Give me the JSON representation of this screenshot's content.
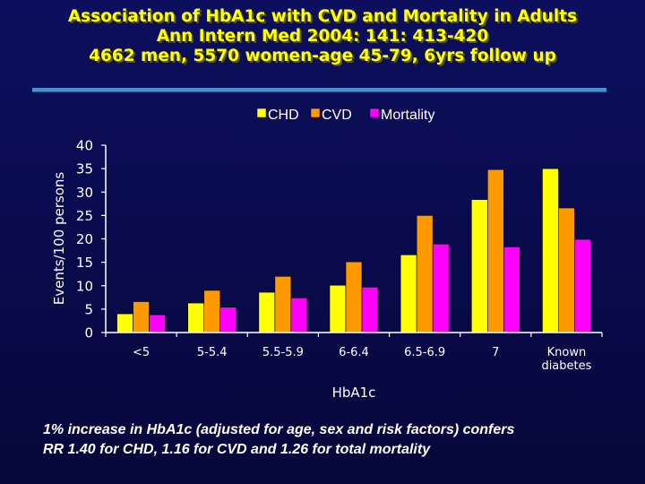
{
  "slide": {
    "title_lines": [
      "Association of HbA1c with CVD and Mortality in Adults",
      "Ann Intern Med 2004: 141: 413-420",
      "4662 men, 5570 women-age 45-79, 6yrs follow up"
    ],
    "note_lines": [
      "1% increase in HbA1c (adjusted for age, sex and risk factors) confers",
      "RR 1.40 for CHD, 1.16 for CVD and 1.26 for total mortality"
    ],
    "colors": {
      "title": "#ffff00",
      "divider": "#4a8fd6",
      "background": "#0a0b4f"
    }
  },
  "chart_data": {
    "type": "bar",
    "xlabel": "HbA1c",
    "ylabel": "Events/100 persons",
    "ylim": [
      0,
      40
    ],
    "yticks": [
      0,
      5,
      10,
      15,
      20,
      25,
      30,
      35,
      40
    ],
    "grid": false,
    "legend_position": "top",
    "categories": [
      [
        "<5"
      ],
      [
        "5-5.4"
      ],
      [
        "5.5-5.9"
      ],
      [
        "6-6.4"
      ],
      [
        "6.5-6.9"
      ],
      [
        "7"
      ],
      [
        "Known",
        "diabetes"
      ]
    ],
    "series": [
      {
        "name": "CHD",
        "color": "#ffff00",
        "values": [
          4,
          6.3,
          8.6,
          10.1,
          16.6,
          28.4,
          35
        ]
      },
      {
        "name": "CVD",
        "color": "#ff9900",
        "values": [
          6.6,
          9,
          12,
          15.1,
          25,
          34.8,
          26.6
        ]
      },
      {
        "name": "Mortality",
        "color": "#ff00ff",
        "values": [
          3.8,
          5.4,
          7.4,
          9.7,
          18.9,
          18.3,
          19.9
        ]
      }
    ]
  }
}
